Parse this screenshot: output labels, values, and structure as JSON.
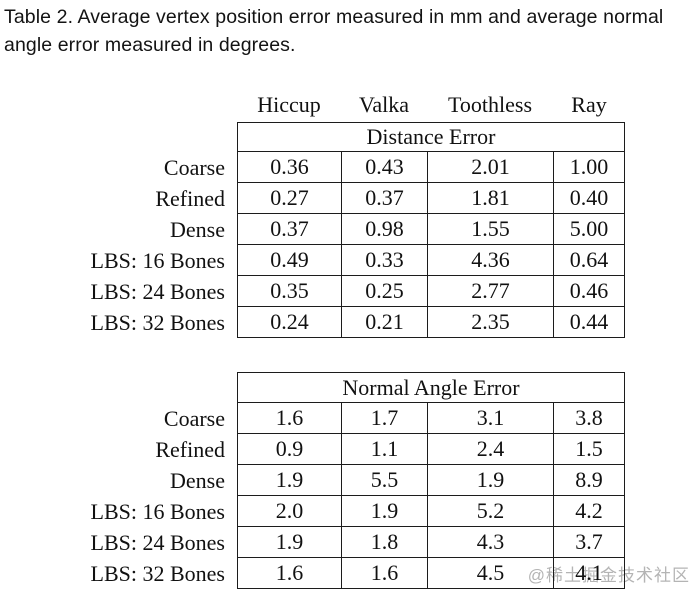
{
  "caption": {
    "line1": "Table 2.  Average vertex position error measured in mm and average normal",
    "line2": "angle error measured in degrees."
  },
  "columns": [
    "Hiccup",
    "Valka",
    "Toothless",
    "Ray"
  ],
  "tables": [
    {
      "title": "Distance Error",
      "rows": [
        {
          "label": "Coarse",
          "values": [
            "0.36",
            "0.43",
            "2.01",
            "1.00"
          ]
        },
        {
          "label": "Refined",
          "values": [
            "0.27",
            "0.37",
            "1.81",
            "0.40"
          ]
        },
        {
          "label": "Dense",
          "values": [
            "0.37",
            "0.98",
            "1.55",
            "5.00"
          ]
        },
        {
          "label": "LBS: 16 Bones",
          "values": [
            "0.49",
            "0.33",
            "4.36",
            "0.64"
          ]
        },
        {
          "label": "LBS: 24 Bones",
          "values": [
            "0.35",
            "0.25",
            "2.77",
            "0.46"
          ]
        },
        {
          "label": "LBS: 32 Bones",
          "values": [
            "0.24",
            "0.21",
            "2.35",
            "0.44"
          ]
        }
      ]
    },
    {
      "title": "Normal Angle Error",
      "rows": [
        {
          "label": "Coarse",
          "values": [
            "1.6",
            "1.7",
            "3.1",
            "3.8"
          ]
        },
        {
          "label": "Refined",
          "values": [
            "0.9",
            "1.1",
            "2.4",
            "1.5"
          ]
        },
        {
          "label": "Dense",
          "values": [
            "1.9",
            "5.5",
            "1.9",
            "8.9"
          ]
        },
        {
          "label": "LBS: 16 Bones",
          "values": [
            "2.0",
            "1.9",
            "5.2",
            "4.2"
          ]
        },
        {
          "label": "LBS: 24 Bones",
          "values": [
            "1.9",
            "1.8",
            "4.3",
            "3.7"
          ]
        },
        {
          "label": "LBS: 32 Bones",
          "values": [
            "1.6",
            "1.6",
            "4.5",
            "4.1"
          ]
        }
      ]
    }
  ],
  "watermark": "@稀土掘金技术社区",
  "colors": {
    "text": "#111111",
    "border": "#1c1c1c",
    "watermark": "#b4b4b4",
    "background": "#ffffff"
  }
}
